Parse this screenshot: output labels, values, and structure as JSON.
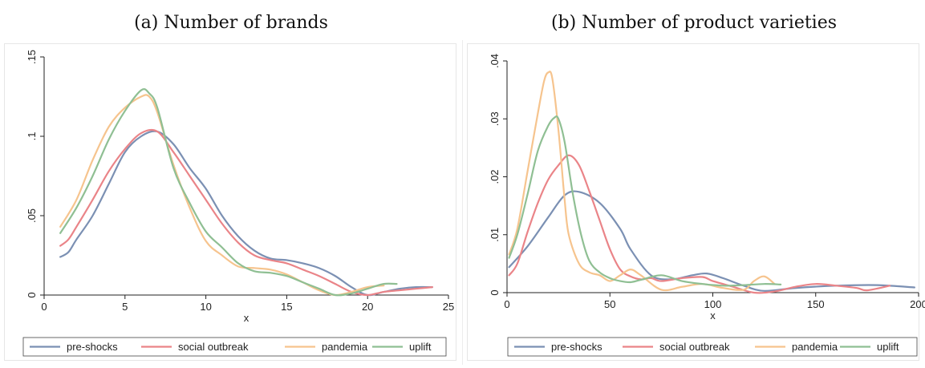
{
  "colors": {
    "pre_shocks": "#7b90b3",
    "social_outbreak": "#ea8488",
    "pandemia": "#f6c48e",
    "uplift": "#8fbf93",
    "axis": "#222222"
  },
  "chart_data": [
    {
      "type": "line",
      "title": "(a) Number of brands",
      "xlabel": "x",
      "ylabel": "",
      "xlim": [
        0,
        25
      ],
      "ylim": [
        0,
        0.15
      ],
      "xticks": [
        0,
        5,
        10,
        15,
        20,
        25
      ],
      "yticks": [
        0,
        0.05,
        0.1,
        0.15
      ],
      "xtick_labels": [
        "0",
        "5",
        "10",
        "15",
        "20",
        "25"
      ],
      "ytick_labels": [
        "0",
        ".05",
        ".1",
        ".15"
      ],
      "grid": false,
      "legend_position": "bottom",
      "series": [
        {
          "name": "pre-shocks",
          "color_key": "pre_shocks",
          "x": [
            1,
            1.5,
            2,
            3,
            4,
            5,
            6,
            7,
            8,
            9,
            10,
            11,
            12,
            13,
            14,
            15,
            16,
            17,
            18,
            19,
            20,
            21,
            22,
            23,
            24
          ],
          "y": [
            0.024,
            0.027,
            0.035,
            0.05,
            0.07,
            0.09,
            0.1,
            0.103,
            0.095,
            0.08,
            0.067,
            0.05,
            0.037,
            0.028,
            0.023,
            0.022,
            0.02,
            0.017,
            0.012,
            0.005,
            0.0,
            0.002,
            0.004,
            0.005,
            0.005
          ]
        },
        {
          "name": "social outbreak",
          "color_key": "social_outbreak",
          "x": [
            1,
            1.5,
            2,
            3,
            4,
            5,
            6,
            7,
            8,
            9,
            10,
            11,
            12,
            13,
            14,
            15,
            16,
            17,
            18,
            19,
            20,
            21,
            22,
            23,
            24
          ],
          "y": [
            0.031,
            0.035,
            0.043,
            0.06,
            0.078,
            0.092,
            0.102,
            0.103,
            0.09,
            0.075,
            0.06,
            0.045,
            0.033,
            0.025,
            0.022,
            0.02,
            0.016,
            0.012,
            0.007,
            0.002,
            0.0,
            0.002,
            0.003,
            0.004,
            0.005
          ]
        },
        {
          "name": "pandemia",
          "color_key": "pandemia",
          "x": [
            1,
            2,
            3,
            4,
            5,
            6,
            6.5,
            7,
            8,
            9,
            10,
            11,
            12,
            13,
            14,
            15,
            16,
            17,
            18,
            19,
            20,
            21
          ],
          "y": [
            0.043,
            0.06,
            0.085,
            0.106,
            0.118,
            0.125,
            0.125,
            0.115,
            0.082,
            0.055,
            0.034,
            0.025,
            0.018,
            0.017,
            0.016,
            0.013,
            0.008,
            0.003,
            0.0,
            0.002,
            0.005,
            0.006
          ]
        },
        {
          "name": "uplift",
          "color_key": "uplift",
          "x": [
            1,
            2,
            3,
            4,
            5,
            6,
            6.5,
            7,
            8,
            9,
            10,
            11,
            12,
            13,
            14,
            15,
            16,
            17,
            18,
            19,
            20,
            21,
            21.8
          ],
          "y": [
            0.039,
            0.055,
            0.075,
            0.098,
            0.116,
            0.129,
            0.127,
            0.118,
            0.08,
            0.058,
            0.04,
            0.03,
            0.02,
            0.015,
            0.014,
            0.012,
            0.008,
            0.004,
            0.0,
            0.001,
            0.004,
            0.007,
            0.007
          ]
        }
      ]
    },
    {
      "type": "line",
      "title": "(b) Number of product varieties",
      "xlabel": "x",
      "ylabel": "",
      "xlim": [
        0,
        200
      ],
      "ylim": [
        0,
        0.04
      ],
      "xticks": [
        0,
        50,
        100,
        150,
        200
      ],
      "yticks": [
        0,
        0.01,
        0.02,
        0.03,
        0.04
      ],
      "xtick_labels": [
        "0",
        "50",
        "100",
        "150",
        "200"
      ],
      "ytick_labels": [
        "0",
        ".01",
        ".02",
        ".03",
        ".04"
      ],
      "grid": false,
      "legend_position": "bottom",
      "series": [
        {
          "name": "pre-shocks",
          "color_key": "pre_shocks",
          "x": [
            1,
            10,
            20,
            28,
            35,
            45,
            55,
            60,
            70,
            80,
            90,
            97,
            105,
            115,
            125,
            140,
            160,
            180,
            198
          ],
          "y": [
            0.0044,
            0.008,
            0.013,
            0.0168,
            0.0174,
            0.0155,
            0.011,
            0.0075,
            0.003,
            0.0023,
            0.003,
            0.0033,
            0.0025,
            0.0012,
            0.0003,
            0.0008,
            0.0012,
            0.0013,
            0.0009
          ]
        },
        {
          "name": "social outbreak",
          "color_key": "social_outbreak",
          "x": [
            1,
            5,
            10,
            15,
            20,
            25,
            30,
            35,
            40,
            45,
            50,
            55,
            60,
            65,
            70,
            75,
            85,
            95,
            100,
            110,
            120,
            130,
            140,
            150,
            160,
            170,
            175,
            186
          ],
          "y": [
            0.003,
            0.005,
            0.0105,
            0.0155,
            0.0195,
            0.022,
            0.0237,
            0.022,
            0.0175,
            0.0125,
            0.0075,
            0.004,
            0.0028,
            0.0023,
            0.0025,
            0.002,
            0.0025,
            0.0027,
            0.002,
            0.001,
            0.0,
            0.0002,
            0.001,
            0.0015,
            0.0012,
            0.0008,
            0.0004,
            0.0012
          ]
        },
        {
          "name": "pandemia",
          "color_key": "pandemia",
          "x": [
            1,
            5,
            10,
            15,
            18,
            20,
            22,
            25,
            28,
            30,
            35,
            40,
            45,
            50,
            55,
            60,
            65,
            75,
            85,
            95,
            105,
            115,
            120,
            125,
            130
          ],
          "y": [
            0.0066,
            0.011,
            0.021,
            0.031,
            0.0365,
            0.038,
            0.037,
            0.028,
            0.016,
            0.01,
            0.005,
            0.0035,
            0.003,
            0.002,
            0.003,
            0.004,
            0.003,
            0.0005,
            0.001,
            0.0015,
            0.0008,
            0.0005,
            0.002,
            0.0028,
            0.0015
          ]
        },
        {
          "name": "uplift",
          "color_key": "uplift",
          "x": [
            1,
            5,
            10,
            15,
            20,
            23,
            25,
            28,
            32,
            36,
            40,
            45,
            50,
            55,
            60,
            65,
            75,
            85,
            95,
            105,
            115,
            125,
            133
          ],
          "y": [
            0.006,
            0.01,
            0.017,
            0.0245,
            0.0288,
            0.0302,
            0.03,
            0.026,
            0.017,
            0.01,
            0.0055,
            0.0035,
            0.0025,
            0.002,
            0.0018,
            0.0022,
            0.003,
            0.002,
            0.0015,
            0.0012,
            0.0013,
            0.0015,
            0.0014
          ]
        }
      ]
    }
  ]
}
